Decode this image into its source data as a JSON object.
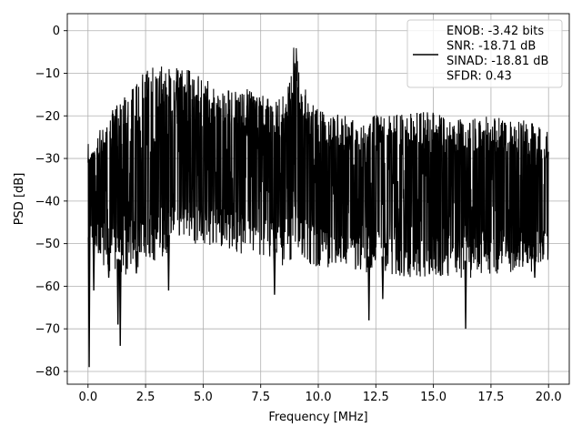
{
  "chart_data": {
    "type": "line",
    "title": "",
    "xlabel": "Frequency [MHz]",
    "ylabel": "PSD [dB]",
    "xlim": [
      -0.9,
      20.9
    ],
    "ylim": [
      -83,
      4
    ],
    "grid": true,
    "legend_placement": "top-right",
    "x_ticks": [
      0.0,
      2.5,
      5.0,
      7.5,
      10.0,
      12.5,
      15.0,
      17.5,
      20.0
    ],
    "x_tick_labels": [
      "0.0",
      "2.5",
      "5.0",
      "7.5",
      "10.0",
      "12.5",
      "15.0",
      "17.5",
      "20.0"
    ],
    "y_ticks": [
      0,
      -10,
      -20,
      -30,
      -40,
      -50,
      -60,
      -70,
      -80
    ],
    "y_tick_labels": [
      "0",
      "−10",
      "−20",
      "−30",
      "−40",
      "−50",
      "−60",
      "−70",
      "−80"
    ],
    "series": [
      {
        "name": "",
        "color": "#000000",
        "legend_lines": [
          "ENOB: -3.42 bits",
          "SNR: -18.71 dB",
          "SINAD: -18.81 dB",
          "SFDR: 0.43"
        ],
        "envelope": {
          "x": [
            0.0,
            0.1,
            0.3,
            0.6,
            1.0,
            1.5,
            2.0,
            2.5,
            3.0,
            3.5,
            4.0,
            4.5,
            5.0,
            5.5,
            6.0,
            6.5,
            7.0,
            7.5,
            8.0,
            8.5,
            8.8,
            9.0,
            9.2,
            9.5,
            10.0,
            11.0,
            12.0,
            13.0,
            14.0,
            15.0,
            16.0,
            17.0,
            18.0,
            19.0,
            20.0
          ],
          "upper": [
            -25,
            -28,
            -27,
            -22,
            -19,
            -16,
            -13,
            -9,
            -8,
            -8,
            -9,
            -9,
            -11,
            -12,
            -13,
            -12,
            -14,
            -15,
            -16,
            -15,
            -10,
            -1,
            -7,
            -15,
            -18,
            -20,
            -19,
            -20,
            -19,
            -19,
            -21,
            -20,
            -20,
            -21,
            -23
          ],
          "lower": [
            -55,
            -50,
            -52,
            -55,
            -57,
            -58,
            -56,
            -55,
            -54,
            -52,
            -51,
            -50,
            -51,
            -50,
            -51,
            -52,
            -53,
            -54,
            -55,
            -56,
            -55,
            -50,
            -52,
            -55,
            -56,
            -56,
            -57,
            -57,
            -58,
            -58,
            -58,
            -58,
            -57,
            -57,
            -56
          ],
          "mid": [
            -38,
            -35,
            -36,
            -36,
            -35,
            -34,
            -33,
            -31,
            -30,
            -30,
            -30,
            -30,
            -31,
            -31,
            -32,
            -32,
            -33,
            -34,
            -35,
            -34,
            -30,
            -22,
            -28,
            -34,
            -36,
            -36,
            -37,
            -37,
            -37,
            -37,
            -38,
            -37,
            -37,
            -37,
            -38
          ]
        },
        "dips": [
          {
            "x": 0.05,
            "y": -79
          },
          {
            "x": 0.25,
            "y": -61
          },
          {
            "x": 0.9,
            "y": -58
          },
          {
            "x": 1.3,
            "y": -69
          },
          {
            "x": 1.4,
            "y": -74
          },
          {
            "x": 2.1,
            "y": -57
          },
          {
            "x": 3.5,
            "y": -61
          },
          {
            "x": 8.1,
            "y": -62
          },
          {
            "x": 12.2,
            "y": -68
          },
          {
            "x": 12.8,
            "y": -63
          },
          {
            "x": 16.4,
            "y": -70
          },
          {
            "x": 19.4,
            "y": -58
          }
        ],
        "points": 2000
      }
    ]
  }
}
